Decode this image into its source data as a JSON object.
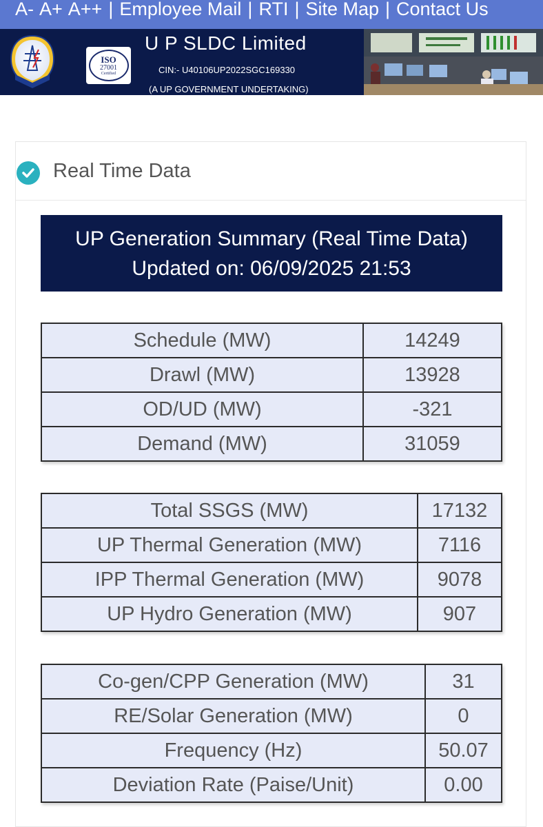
{
  "topbar": {
    "font_small": "A-",
    "font_large": "A+",
    "font_xlarge": "A++",
    "links": [
      "Employee Mail",
      "RTI",
      "Site Map",
      "Contact Us"
    ],
    "separator": "|"
  },
  "header": {
    "logo_text": "UPSLDC",
    "iso": {
      "title": "ISO",
      "number": "27001",
      "certified": "Certified"
    },
    "company_name": "U P SLDC Limited",
    "cin": "CIN:- U40106UP2022SGC169330",
    "undertaking": "(A UP GOVERNMENT UNDERTAKING)"
  },
  "panel": {
    "title": "Real Time Data",
    "summary_title": "UP Generation Summary (Real Time Data)",
    "updated": "Updated on: 06/09/2025 21:53"
  },
  "table1": [
    {
      "label": "Schedule (MW)",
      "value": "14249"
    },
    {
      "label": "Drawl (MW)",
      "value": "13928"
    },
    {
      "label": "OD/UD (MW)",
      "value": "-321"
    },
    {
      "label": "Demand (MW)",
      "value": "31059"
    }
  ],
  "table2": [
    {
      "label": "Total SSGS (MW)",
      "value": "17132"
    },
    {
      "label": "UP Thermal Generation (MW)",
      "value": "7116"
    },
    {
      "label": "IPP Thermal Generation (MW)",
      "value": "9078"
    },
    {
      "label": "UP Hydro Generation (MW)",
      "value": "907"
    }
  ],
  "table3": [
    {
      "label": "Co-gen/CPP Generation (MW)",
      "value": "31"
    },
    {
      "label": "RE/Solar Generation (MW)",
      "value": "0"
    },
    {
      "label": "Frequency (Hz)",
      "value": "50.07"
    },
    {
      "label": "Deviation Rate (Paise/Unit)",
      "value": "0.00"
    }
  ],
  "colors": {
    "topbar": "#5b78d0",
    "header_bg": "#0b1a4a",
    "summary_bg": "#0b1a4a",
    "table_bg": "#e6eaf8",
    "check_accent": "#2ab1bf"
  }
}
